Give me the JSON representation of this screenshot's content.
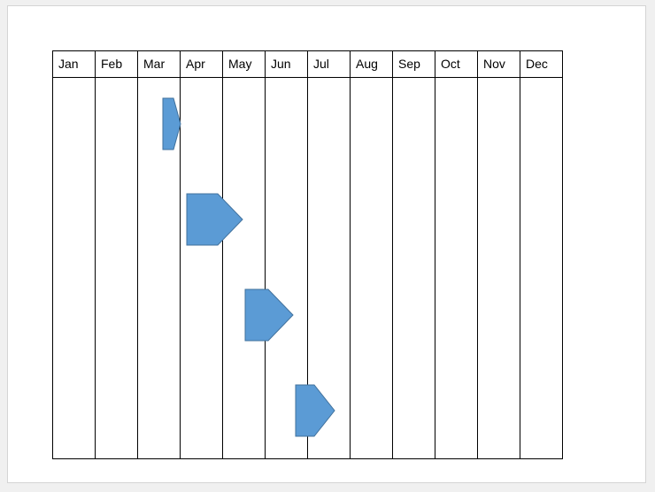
{
  "months": [
    "Jan",
    "Feb",
    "Mar",
    "Apr",
    "May",
    "Jun",
    "Jul",
    "Aug",
    "Sep",
    "Oct",
    "Nov",
    "Dec"
  ],
  "shape_color": "#5b9bd5",
  "shape_stroke": "#41719c"
}
